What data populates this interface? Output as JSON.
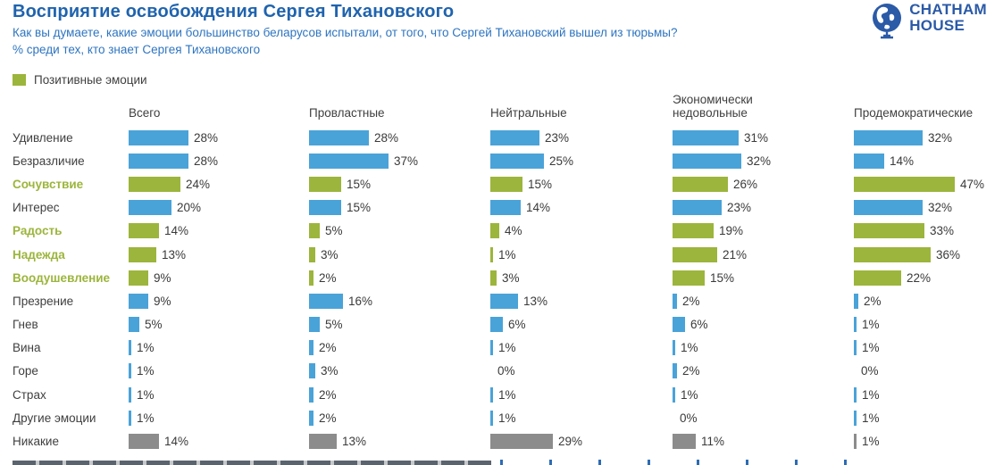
{
  "header": {
    "title": "Восприятие освобождения Сергея Тихановского",
    "question": "Как вы думаете, какие эмоции большинство беларусов испытали, от того, что Сергей Тихановский вышел из тюрьмы?",
    "base_note": "% среди тех, кто знает Сергея Тихановского"
  },
  "logo": {
    "line1": "CHATHAM",
    "line2": "HOUSE"
  },
  "legend": {
    "positive_label": "Позитивные эмоции"
  },
  "chart_data": {
    "type": "bar",
    "orientation": "horizontal",
    "title": "Восприятие освобождения Сергея Тихановского",
    "subtitle": "Как вы думаете, какие эмоции большинство беларусов испытали, от того, что Сергей Тихановский вышел из тюрьмы?",
    "base_note": "% среди тех, кто знает Сергея Тихановского",
    "value_suffix": "%",
    "xlim": [
      0,
      50
    ],
    "categories": [
      "Удивление",
      "Безразличие",
      "Сочувствие",
      "Интерес",
      "Радость",
      "Надежда",
      "Воодушевление",
      "Презрение",
      "Гнев",
      "Вина",
      "Горе",
      "Страх",
      "Другие эмоции",
      "Никакие"
    ],
    "positive_categories": [
      "Сочувствие",
      "Радость",
      "Надежда",
      "Воодушевление"
    ],
    "none_category": "Никакие",
    "series": [
      {
        "name": "Всего",
        "values": [
          28,
          28,
          24,
          20,
          14,
          13,
          9,
          9,
          5,
          1,
          1,
          1,
          1,
          14
        ]
      },
      {
        "name": "Провластные",
        "values": [
          28,
          37,
          15,
          15,
          5,
          3,
          2,
          16,
          5,
          2,
          3,
          2,
          2,
          13
        ]
      },
      {
        "name": "Нейтральные",
        "values": [
          23,
          25,
          15,
          14,
          4,
          1,
          3,
          13,
          6,
          1,
          0,
          1,
          1,
          29
        ]
      },
      {
        "name": "Экономически недовольные",
        "values": [
          31,
          32,
          26,
          23,
          19,
          21,
          15,
          2,
          6,
          1,
          2,
          1,
          0,
          11
        ]
      },
      {
        "name": "Продемократические",
        "values": [
          32,
          14,
          47,
          32,
          33,
          36,
          22,
          2,
          1,
          1,
          0,
          1,
          1,
          1
        ]
      }
    ],
    "colors": {
      "default": "#4aa3d8",
      "positive": "#9cb53c",
      "none": "#8c8c8c"
    },
    "legend": {
      "positive_label": "Позитивные эмоции",
      "position": "top-left"
    },
    "grid": false
  }
}
